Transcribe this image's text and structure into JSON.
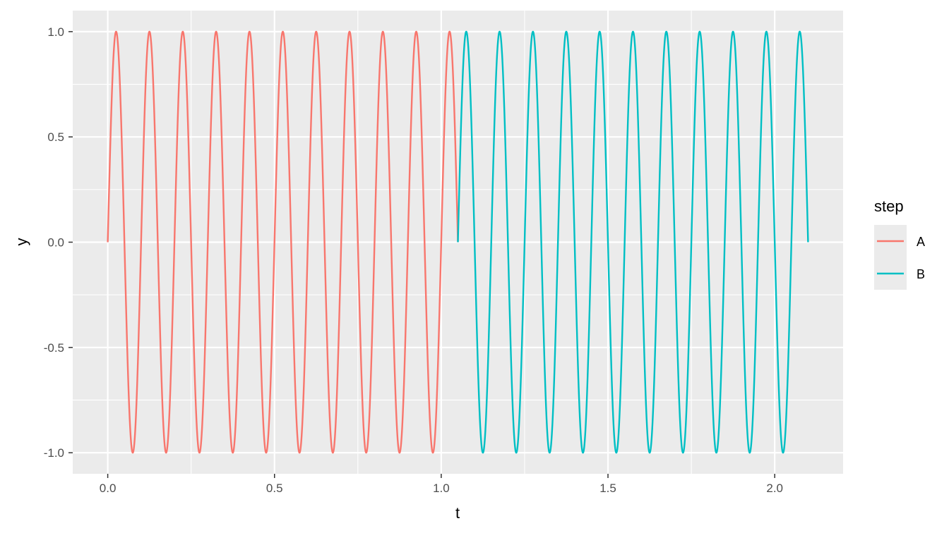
{
  "chart_data": {
    "type": "line",
    "title": "",
    "xlabel": "t",
    "ylabel": "y",
    "xlim": [
      -0.105,
      2.205
    ],
    "ylim": [
      -1.1,
      1.1
    ],
    "x_ticks": [
      0.0,
      0.5,
      1.0,
      1.5,
      2.0
    ],
    "x_tick_labels": [
      "0.0",
      "0.5",
      "1.0",
      "1.5",
      "2.0"
    ],
    "y_ticks": [
      -1.0,
      -0.5,
      0.0,
      0.5,
      1.0
    ],
    "y_tick_labels": [
      "-1.0",
      "-0.5",
      "0.0",
      "0.5",
      "1.0"
    ],
    "grid": true,
    "legend": {
      "title": "step",
      "position": "right",
      "entries": [
        "A",
        "B"
      ]
    },
    "series": [
      {
        "name": "A",
        "color": "#F8766D",
        "function": "sin",
        "frequency_hz": 10,
        "t_start": 0.0,
        "t_end": 1.05,
        "amplitude": 1.0
      },
      {
        "name": "B",
        "color": "#00BFC4",
        "function": "sin",
        "frequency_hz": 10,
        "t_start": 1.05,
        "t_end": 2.1,
        "amplitude": 1.0
      }
    ]
  },
  "colors": {
    "panel_background": "#EBEBEB",
    "grid_major": "#FFFFFF",
    "grid_minor": "#F5F5F5",
    "tick_text": "#4D4D4D"
  }
}
